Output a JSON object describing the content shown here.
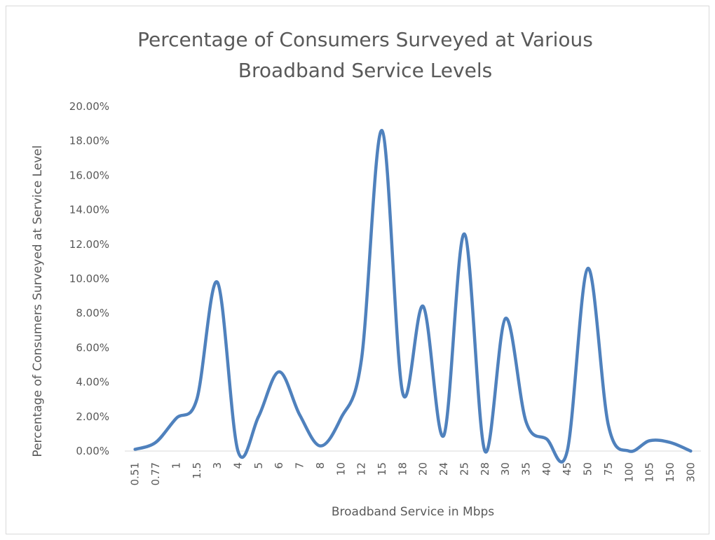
{
  "chart_data": {
    "type": "line",
    "title_lines": [
      "Percentage of Consumers Surveyed at Various",
      "Broadband Service Levels"
    ],
    "xlabel": "Broadband Service in Mbps",
    "ylabel": "Percentage  of  Consumers Surveyed   at Service Level",
    "ylim": [
      0,
      20
    ],
    "y_ticks": [
      "0.00%",
      "2.00%",
      "4.00%",
      "6.00%",
      "8.00%",
      "10.00%",
      "12.00%",
      "14.00%",
      "16.00%",
      "18.00%",
      "20.00%"
    ],
    "grid": false,
    "smooth": true,
    "line_color": "#4f81bd",
    "categories": [
      "0.51",
      "0.77",
      "1",
      "1.5",
      "3",
      "4",
      "5",
      "6",
      "7",
      "8",
      "10",
      "12",
      "15",
      "18",
      "20",
      "24",
      "25",
      "28",
      "30",
      "35",
      "40",
      "45",
      "50",
      "75",
      "100",
      "105",
      "150",
      "300"
    ],
    "values": [
      0.1,
      0.5,
      1.9,
      3.0,
      9.8,
      0.0,
      2.0,
      4.6,
      2.1,
      0.3,
      1.9,
      5.3,
      18.6,
      3.4,
      8.4,
      0.9,
      12.6,
      0.0,
      7.7,
      1.7,
      0.7,
      0.0,
      10.6,
      1.5,
      0.0,
      0.6,
      0.5,
      0.0
    ]
  }
}
